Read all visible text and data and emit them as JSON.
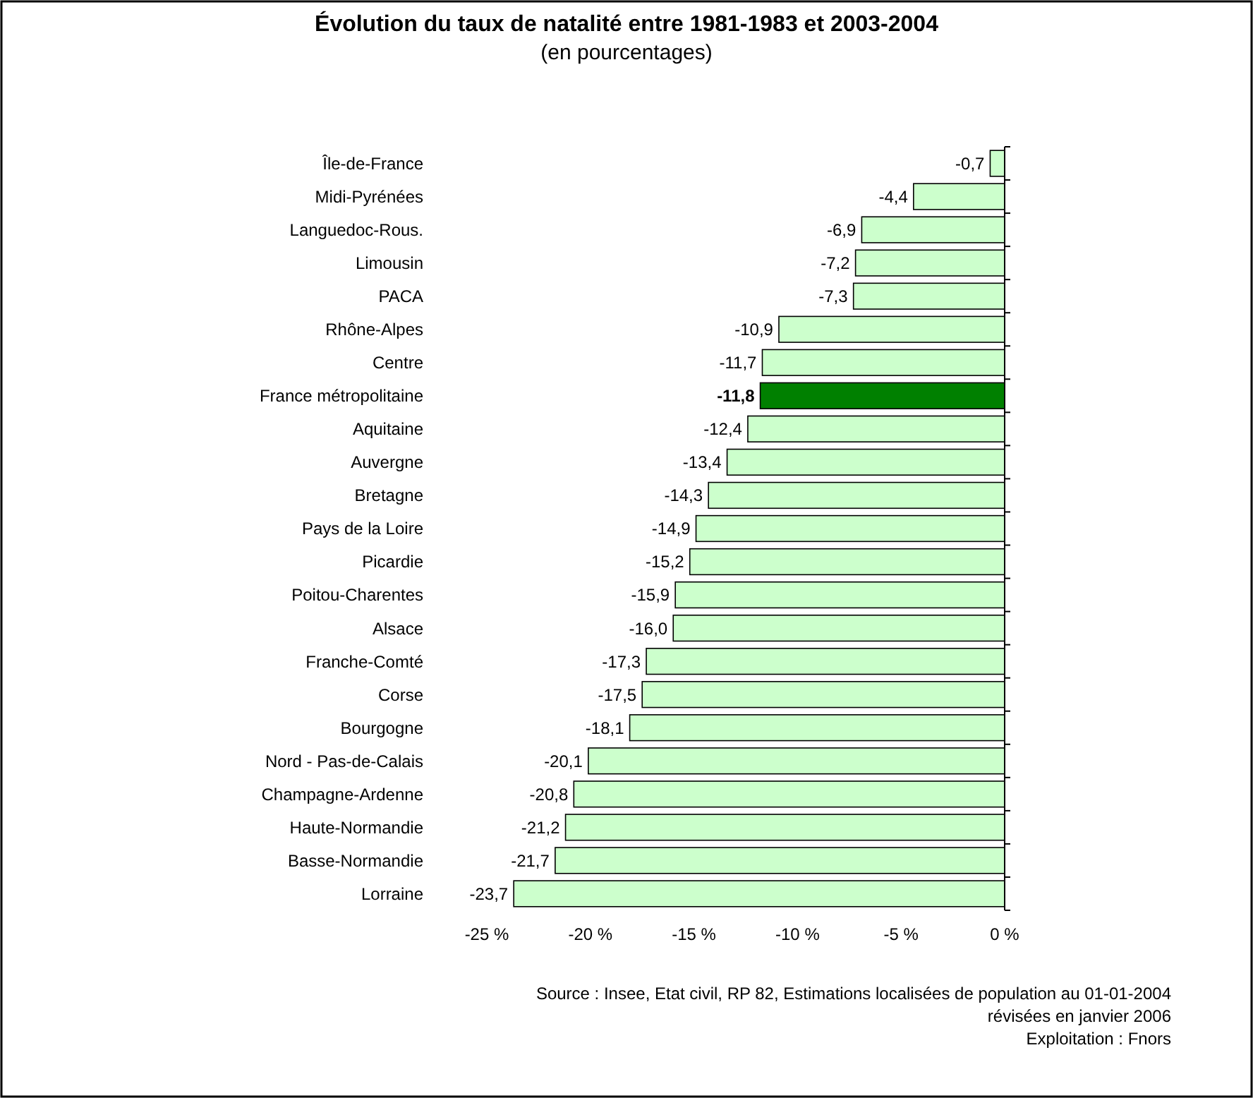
{
  "chart_data": {
    "type": "bar",
    "orientation": "horizontal",
    "title": "Évolution du taux de natalité entre 1981-1983 et 2003-2004",
    "subtitle": "(en pourcentages)",
    "categories": [
      "Île-de-France",
      "Midi-Pyrénées",
      "Languedoc-Rous.",
      "Limousin",
      "PACA",
      "Rhône-Alpes",
      "Centre",
      "France métropolitaine",
      "Aquitaine",
      "Auvergne",
      "Bretagne",
      "Pays de la Loire",
      "Picardie",
      "Poitou-Charentes",
      "Alsace",
      "Franche-Comté",
      "Corse",
      "Bourgogne",
      "Nord - Pas-de-Calais",
      "Champagne-Ardenne",
      "Haute-Normandie",
      "Basse-Normandie",
      "Lorraine"
    ],
    "values": [
      -0.7,
      -4.4,
      -6.9,
      -7.2,
      -7.3,
      -10.9,
      -11.7,
      -11.8,
      -12.4,
      -13.4,
      -14.3,
      -14.9,
      -15.2,
      -15.9,
      -16.0,
      -17.3,
      -17.5,
      -18.1,
      -20.1,
      -20.8,
      -21.2,
      -21.7,
      -23.7
    ],
    "value_labels": [
      "-0,7",
      "-4,4",
      "-6,9",
      "-7,2",
      "-7,3",
      "-10,9",
      "-11,7",
      "-11,8",
      "-12,4",
      "-13,4",
      "-14,3",
      "-14,9",
      "-15,2",
      "-15,9",
      "-16,0",
      "-17,3",
      "-17,5",
      "-18,1",
      "-20,1",
      "-20,8",
      "-21,2",
      "-21,7",
      "-23,7"
    ],
    "colors": [
      "#ccffcc",
      "#ccffcc",
      "#ccffcc",
      "#ccffcc",
      "#ccffcc",
      "#ccffcc",
      "#ccffcc",
      "#008000",
      "#ccffcc",
      "#ccffcc",
      "#ccffcc",
      "#ccffcc",
      "#ccffcc",
      "#ccffcc",
      "#ccffcc",
      "#ccffcc",
      "#ccffcc",
      "#ccffcc",
      "#ccffcc",
      "#ccffcc",
      "#ccffcc",
      "#ccffcc",
      "#ccffcc"
    ],
    "xlim": [
      -25,
      0
    ],
    "xticks": [
      {
        "value": -25,
        "label": "-25 %"
      },
      {
        "value": -20,
        "label": "-20 %"
      },
      {
        "value": -15,
        "label": "-15 %"
      },
      {
        "value": -10,
        "label": "-10 %"
      },
      {
        "value": -5,
        "label": "-5 %"
      },
      {
        "value": 0,
        "label": "0 %"
      }
    ],
    "grid": false,
    "annotations": [
      "Source : Insee, Etat civil, RP 82, Estimations localisées de population au 01-01-2004",
      "révisées en janvier 2006",
      "Exploitation : Fnors"
    ]
  }
}
